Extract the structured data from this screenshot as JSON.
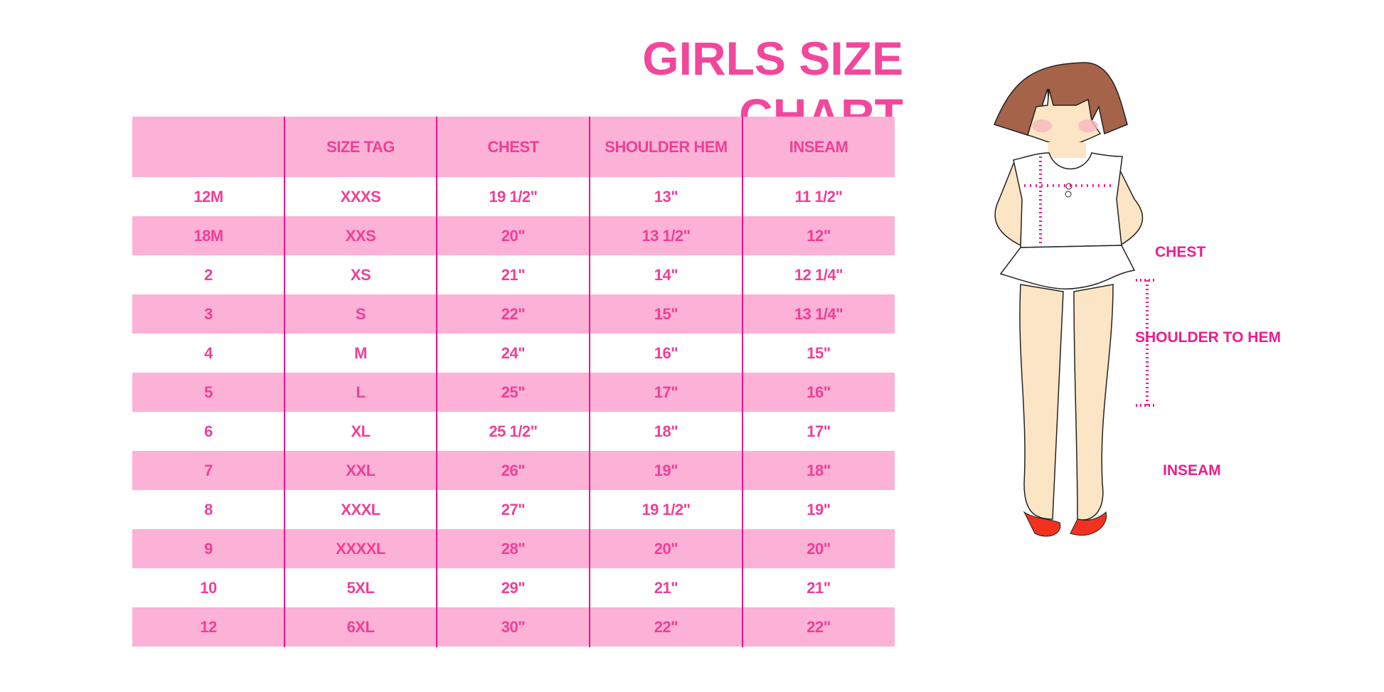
{
  "title": "GIRLS SIZE CHART",
  "table": {
    "headers": [
      "",
      "SIZE TAG",
      "CHEST",
      "SHOULDER HEM",
      "INSEAM"
    ],
    "rows": [
      [
        "12M",
        "XXXS",
        "19 1/2\"",
        "13\"",
        "11 1/2\""
      ],
      [
        "18M",
        "XXS",
        "20\"",
        "13 1/2\"",
        "12\""
      ],
      [
        "2",
        "XS",
        "21\"",
        "14\"",
        "12 1/4\""
      ],
      [
        "3",
        "S",
        "22\"",
        "15\"",
        "13 1/4\""
      ],
      [
        "4",
        "M",
        "24\"",
        "16\"",
        "15\""
      ],
      [
        "5",
        "L",
        "25\"",
        "17\"",
        "16\""
      ],
      [
        "6",
        "XL",
        "25 1/2\"",
        "18\"",
        "17\""
      ],
      [
        "7",
        "XXL",
        "26\"",
        "19\"",
        "18\""
      ],
      [
        "8",
        "XXXL",
        "27\"",
        "19 1/2\"",
        "19\""
      ],
      [
        "9",
        "XXXXL",
        "28\"",
        "20\"",
        "20\""
      ],
      [
        "10",
        "5XL",
        "29\"",
        "21\"",
        "21\""
      ],
      [
        "12",
        "6XL",
        "30\"",
        "22\"",
        "22\""
      ]
    ]
  },
  "figure": {
    "labels": {
      "chest": "CHEST",
      "shoulder_to_hem": "SHOULDER TO HEM",
      "inseam": "INSEAM"
    }
  },
  "colors": {
    "accent": "#f2479c",
    "row_pink": "#fcb1d6",
    "divider": "#e8168c",
    "hair": "#a5634a",
    "skin": "#fce5c4",
    "shoes": "#f0321e"
  }
}
